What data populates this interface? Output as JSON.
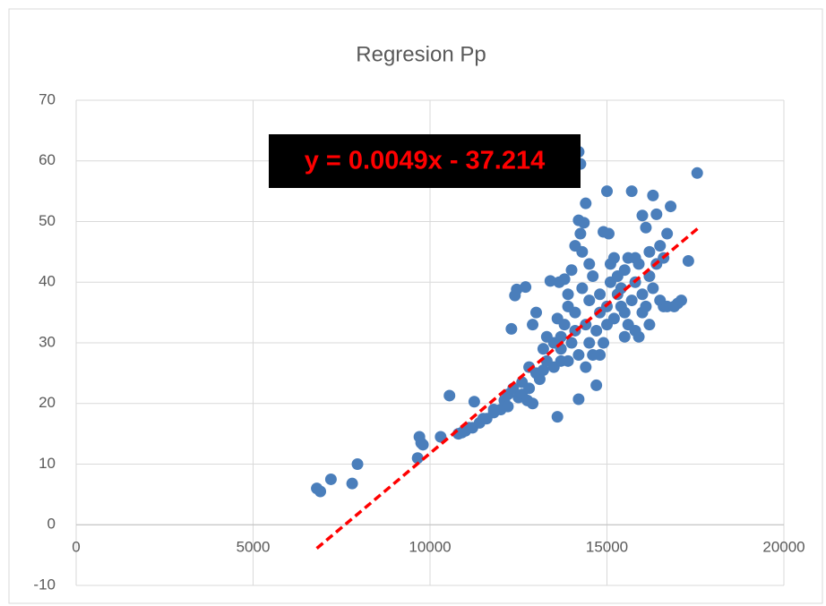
{
  "chart_data": {
    "type": "scatter",
    "title": "Regresion Pp",
    "color": "#4a7ebb",
    "grid": true,
    "xlim": [
      0,
      20000
    ],
    "xticks": [
      0,
      5000,
      10000,
      15000,
      20000
    ],
    "ylim": [
      -10,
      70
    ],
    "yticks": [
      -10,
      0,
      10,
      20,
      30,
      40,
      50,
      60,
      70
    ],
    "x": [
      6800,
      6900,
      7200,
      7800,
      7950,
      9650,
      9700,
      9750,
      9800,
      10300,
      10550,
      10800,
      10900,
      11000,
      11100,
      11200,
      11250,
      11400,
      11500,
      11600,
      11800,
      11800,
      12000,
      12100,
      12200,
      12200,
      12300,
      12350,
      12400,
      12450,
      12500,
      12600,
      12600,
      12700,
      12750,
      12800,
      12800,
      12900,
      12900,
      13000,
      13000,
      13100,
      13200,
      13200,
      13300,
      13300,
      13400,
      13500,
      13500,
      13600,
      13600,
      13650,
      13700,
      13700,
      13700,
      13800,
      13800,
      13900,
      13900,
      13900,
      14000,
      14000,
      14100,
      14100,
      14100,
      14200,
      14250,
      14200,
      14250,
      14200,
      14200,
      14300,
      14300,
      14350,
      14400,
      14400,
      14400,
      14500,
      14500,
      14500,
      14600,
      14600,
      14700,
      14700,
      14800,
      14800,
      14800,
      14900,
      14900,
      15000,
      15000,
      15000,
      15050,
      15100,
      15100,
      15200,
      15200,
      15300,
      15300,
      15400,
      15400,
      15500,
      15500,
      15500,
      15600,
      15600,
      15700,
      15700,
      15800,
      15800,
      15800,
      15900,
      15900,
      16000,
      16000,
      16000,
      16100,
      16100,
      16200,
      16200,
      16200,
      16300,
      16300,
      16400,
      16400,
      16500,
      16500,
      16600,
      16600,
      16700,
      16700,
      16800,
      16900,
      17000,
      17100,
      17300,
      17550
    ],
    "values": [
      6,
      5.5,
      7.5,
      6.8,
      10,
      11,
      14.5,
      13.5,
      13.2,
      14.5,
      21.3,
      15,
      15.2,
      15.5,
      16,
      16,
      20.3,
      16.8,
      17.5,
      17.5,
      18.5,
      19,
      19,
      20.5,
      19.5,
      21.5,
      32.3,
      22.5,
      37.8,
      38.8,
      21,
      21.5,
      23.5,
      39.2,
      20.5,
      22.5,
      26,
      20,
      33,
      35,
      25,
      24,
      25.5,
      29,
      27,
      31,
      40.2,
      26,
      30,
      17.8,
      34,
      40,
      27,
      31,
      29,
      40.5,
      33,
      38,
      36,
      27,
      30,
      42,
      46,
      35,
      32,
      61.5,
      59.5,
      50.2,
      48,
      20.7,
      28,
      45,
      39,
      49.8,
      53,
      33,
      26,
      43,
      37,
      30,
      28,
      41,
      23,
      32,
      35,
      38,
      28,
      48.3,
      30,
      55,
      36,
      33,
      48,
      40,
      43,
      44,
      34,
      38,
      41,
      36,
      39,
      42,
      35,
      31,
      33,
      44,
      55,
      37,
      44,
      40,
      32,
      31,
      43,
      51,
      38,
      35,
      49,
      36,
      45,
      41,
      33,
      54.3,
      39,
      51.2,
      43,
      46,
      37,
      36,
      44,
      48,
      36,
      52.5,
      36,
      36.5,
      37,
      43.5,
      58
    ],
    "trendline": {
      "label": "y = 0.0049x - 37.214",
      "slope": 0.0049,
      "intercept": -37.214,
      "x": [
        6800,
        17600
      ],
      "color": "#ff0000"
    }
  }
}
